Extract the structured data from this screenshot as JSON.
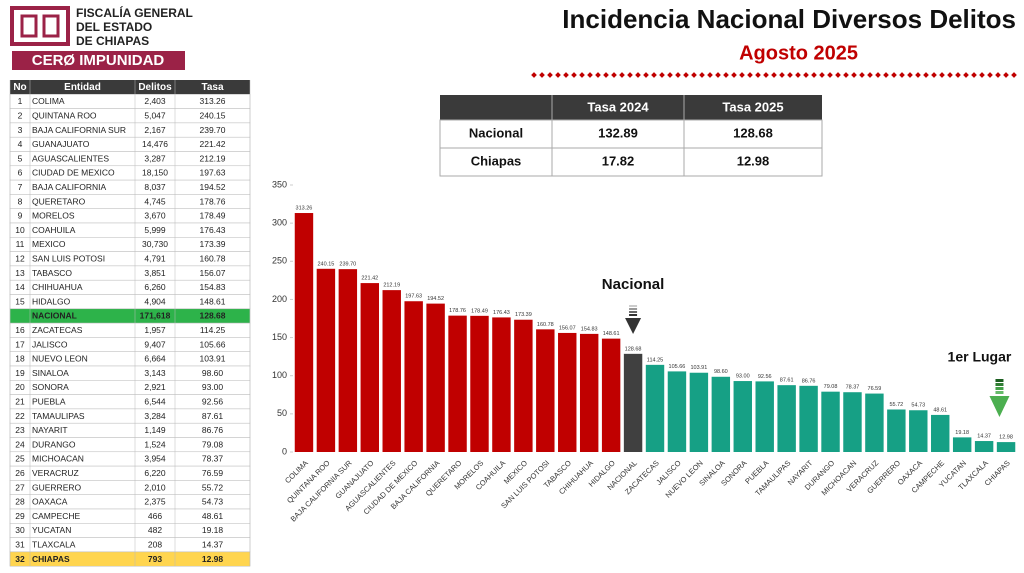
{
  "header": {
    "org": [
      "FISCALÍA GENERAL",
      "DEL ESTADO",
      "DE CHIAPAS"
    ],
    "slogan": "CERØ IMPUNIDAD",
    "title": "Incidencia Nacional Diversos Delitos",
    "subtitle": "Agosto 2025"
  },
  "table": {
    "columns": [
      "No",
      "Entidad",
      "Delitos",
      "Tasa"
    ],
    "rows": [
      [
        "1",
        "COLIMA",
        "2,403",
        "313.26"
      ],
      [
        "2",
        "QUINTANA ROO",
        "5,047",
        "240.15"
      ],
      [
        "3",
        "BAJA CALIFORNIA SUR",
        "2,167",
        "239.70"
      ],
      [
        "4",
        "GUANAJUATO",
        "14,476",
        "221.42"
      ],
      [
        "5",
        "AGUASCALIENTES",
        "3,287",
        "212.19"
      ],
      [
        "6",
        "CIUDAD DE MEXICO",
        "18,150",
        "197.63"
      ],
      [
        "7",
        "BAJA CALIFORNIA",
        "8,037",
        "194.52"
      ],
      [
        "8",
        "QUERETARO",
        "4,745",
        "178.76"
      ],
      [
        "9",
        "MORELOS",
        "3,670",
        "178.49"
      ],
      [
        "10",
        "COAHUILA",
        "5,999",
        "176.43"
      ],
      [
        "11",
        "MEXICO",
        "30,730",
        "173.39"
      ],
      [
        "12",
        "SAN LUIS POTOSI",
        "4,791",
        "160.78"
      ],
      [
        "13",
        "TABASCO",
        "3,851",
        "156.07"
      ],
      [
        "14",
        "CHIHUAHUA",
        "6,260",
        "154.83"
      ],
      [
        "15",
        "HIDALGO",
        "4,904",
        "148.61"
      ],
      [
        null,
        "NACIONAL",
        "171,618",
        "128.68"
      ],
      [
        "16",
        "ZACATECAS",
        "1,957",
        "114.25"
      ],
      [
        "17",
        "JALISCO",
        "9,407",
        "105.66"
      ],
      [
        "18",
        "NUEVO LEON",
        "6,664",
        "103.91"
      ],
      [
        "19",
        "SINALOA",
        "3,143",
        "98.60"
      ],
      [
        "20",
        "SONORA",
        "2,921",
        "93.00"
      ],
      [
        "21",
        "PUEBLA",
        "6,544",
        "92.56"
      ],
      [
        "22",
        "TAMAULIPAS",
        "3,284",
        "87.61"
      ],
      [
        "23",
        "NAYARIT",
        "1,149",
        "86.76"
      ],
      [
        "24",
        "DURANGO",
        "1,524",
        "79.08"
      ],
      [
        "25",
        "MICHOACAN",
        "3,954",
        "78.37"
      ],
      [
        "26",
        "VERACRUZ",
        "6,220",
        "76.59"
      ],
      [
        "27",
        "GUERRERO",
        "2,010",
        "55.72"
      ],
      [
        "28",
        "OAXACA",
        "2,375",
        "54.73"
      ],
      [
        "29",
        "CAMPECHE",
        "466",
        "48.61"
      ],
      [
        "30",
        "YUCATAN",
        "482",
        "19.18"
      ],
      [
        "31",
        "TLAXCALA",
        "208",
        "14.37"
      ],
      [
        "32",
        "CHIAPAS",
        "793",
        "12.98"
      ]
    ]
  },
  "summary": {
    "columns": [
      "Tasa 2024",
      "Tasa 2025"
    ],
    "rows": [
      {
        "label": "Nacional",
        "values": [
          "132.89",
          "128.68"
        ]
      },
      {
        "label": "Chiapas",
        "values": [
          "17.82",
          "12.98"
        ]
      }
    ]
  },
  "chart_data": {
    "type": "bar",
    "categories": [
      "COLIMA",
      "QUINTANA ROO",
      "BAJA CALIFORNIA SUR",
      "GUANAJUATO",
      "AGUASCALIENTES",
      "CIUDAD DE MEXICO",
      "BAJA CALIFORNIA",
      "QUERETARO",
      "MORELOS",
      "COAHUILA",
      "MEXICO",
      "SAN LUIS POTOSI",
      "TABASCO",
      "CHIHUAHUA",
      "HIDALGO",
      "NACIONAL",
      "ZACATECAS",
      "JALISCO",
      "NUEVO LEON",
      "SINALOA",
      "SONORA",
      "PUEBLA",
      "TAMAULIPAS",
      "NAYARIT",
      "DURANGO",
      "MICHOACAN",
      "VERACRUZ",
      "GUERRERO",
      "OAXACA",
      "CAMPECHE",
      "YUCATAN",
      "TLAXCALA",
      "CHIAPAS"
    ],
    "values": [
      313.26,
      240.15,
      239.7,
      221.42,
      212.19,
      197.63,
      194.52,
      178.76,
      178.49,
      176.43,
      173.39,
      160.78,
      156.07,
      154.83,
      148.61,
      128.68,
      114.25,
      105.66,
      103.91,
      98.6,
      93,
      92.56,
      87.61,
      86.76,
      79.08,
      78.37,
      76.59,
      55.72,
      54.73,
      48.61,
      19.18,
      14.37,
      12.98
    ],
    "value_labels": [
      "313.26",
      "240.15",
      "239.70",
      "221.42",
      "212.19",
      "197.63",
      "194.52",
      "178.76",
      "178.49",
      "176.43",
      "173.39",
      "160.78",
      "156.07",
      "154.83",
      "148.61",
      "128.68",
      "114.25",
      "105.66",
      "103.91",
      "98.60",
      "93.00",
      "92.56",
      "87.61",
      "86.76",
      "79.08",
      "78.37",
      "76.59",
      "55.72",
      "54.73",
      "48.61",
      "19.18",
      "14.37",
      "12.98"
    ],
    "colors": [
      "#c00000",
      "#c00000",
      "#c00000",
      "#c00000",
      "#c00000",
      "#c00000",
      "#c00000",
      "#c00000",
      "#c00000",
      "#c00000",
      "#c00000",
      "#c00000",
      "#c00000",
      "#c00000",
      "#c00000",
      "#404040",
      "#16a085",
      "#16a085",
      "#16a085",
      "#16a085",
      "#16a085",
      "#16a085",
      "#16a085",
      "#16a085",
      "#16a085",
      "#16a085",
      "#16a085",
      "#16a085",
      "#16a085",
      "#16a085",
      "#16a085",
      "#16a085",
      "#16a085"
    ],
    "ylim": [
      0,
      350
    ],
    "yticks": [
      0,
      50,
      100,
      150,
      200,
      250,
      300,
      350
    ],
    "grid": false,
    "annotations": [
      "Nacional",
      "1er Lugar"
    ]
  }
}
